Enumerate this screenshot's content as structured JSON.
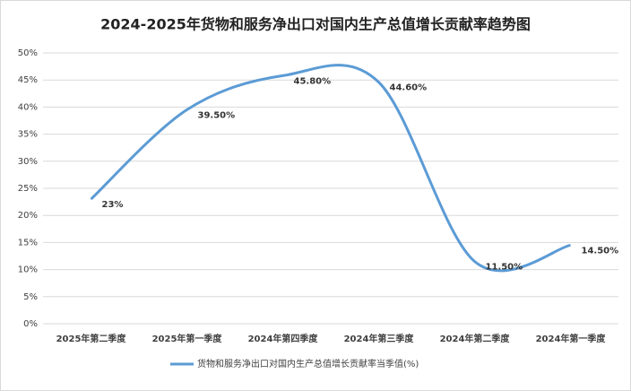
{
  "chart_data": {
    "type": "line",
    "title": "2024-2025年货物和服务净出口对国内生产总值增长贡献率趋势图",
    "categories": [
      "2025年第二季度",
      "2025年第一季度",
      "2024年第四季度",
      "2024年第三季度",
      "2024年第二季度",
      "2024年第一季度"
    ],
    "series": [
      {
        "name": "货物和服务净出口对国内生产总值增长贡献率当季值(%)",
        "color": "#5b9bd5",
        "values": [
          23,
          39.5,
          45.8,
          44.6,
          11.5,
          14.5
        ],
        "value_labels": [
          "23%",
          "39.50%",
          "45.80%",
          "44.60%",
          "11.50%",
          "14.50%"
        ]
      }
    ],
    "ylim": [
      0,
      50
    ],
    "yticks": [
      {
        "value": 0,
        "label": "0%"
      },
      {
        "value": 5,
        "label": "5%"
      },
      {
        "value": 10,
        "label": "10%"
      },
      {
        "value": 15,
        "label": "15%"
      },
      {
        "value": 20,
        "label": "20%"
      },
      {
        "value": 25,
        "label": "25%"
      },
      {
        "value": 30,
        "label": "30%"
      },
      {
        "value": 35,
        "label": "35%"
      },
      {
        "value": 40,
        "label": "40%"
      },
      {
        "value": 45,
        "label": "45%"
      },
      {
        "value": 50,
        "label": "50%"
      }
    ],
    "grid": true,
    "smooth": true,
    "legend": "bottom"
  }
}
